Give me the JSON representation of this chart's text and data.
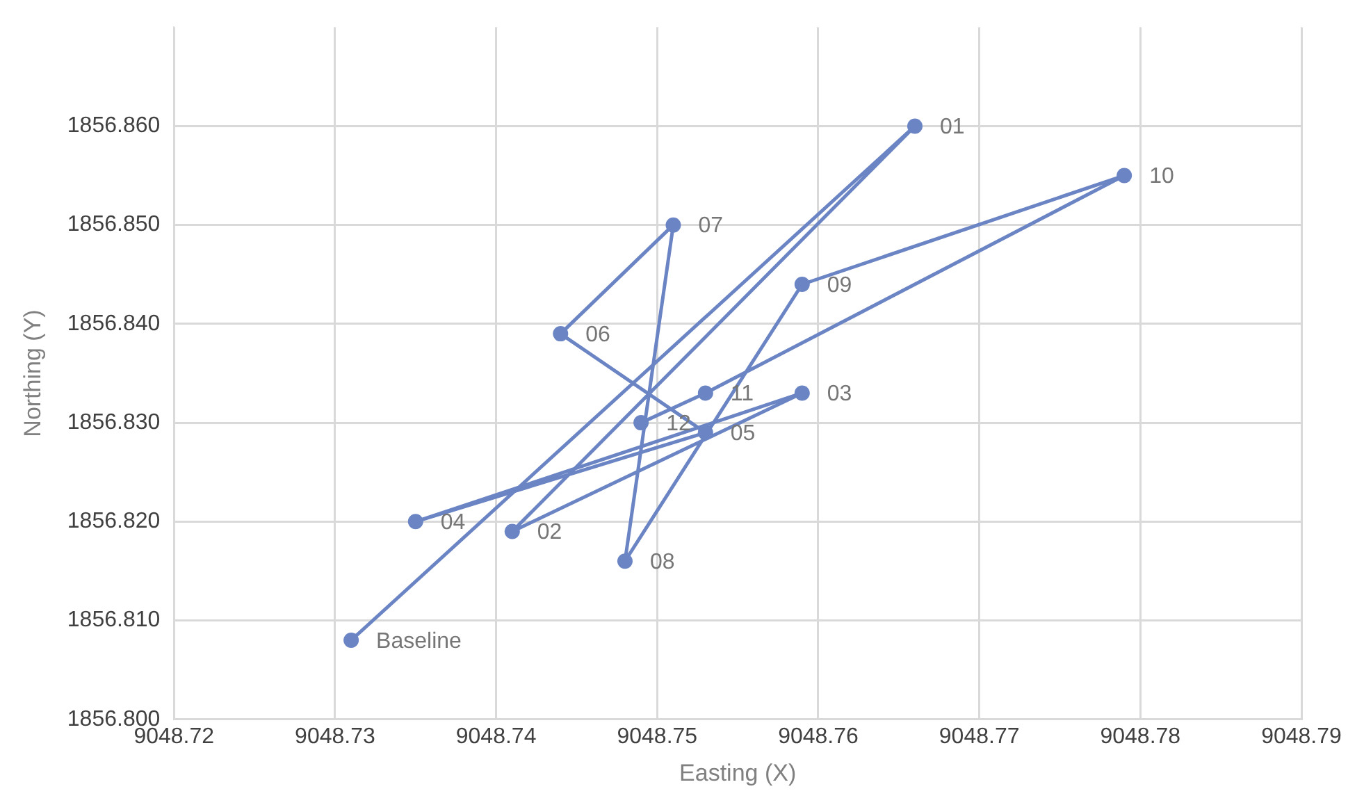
{
  "chart_data": {
    "type": "line",
    "xlabel": "Easting (X)",
    "ylabel": "Northing (Y)",
    "xlim": [
      9048.72,
      9048.79
    ],
    "xticks": [
      9048.72,
      9048.73,
      9048.74,
      9048.75,
      9048.76,
      9048.77,
      9048.78,
      9048.79
    ],
    "ylim": [
      1856.8,
      1856.87
    ],
    "yticks": [
      {
        "value": 1856.8,
        "label": "1856.800"
      },
      {
        "value": 1856.81,
        "label": "1856.810"
      },
      {
        "value": 1856.82,
        "label": "1856.820"
      },
      {
        "value": 1856.83,
        "label": "1856.830"
      },
      {
        "value": 1856.84,
        "label": "1856.840"
      },
      {
        "value": 1856.85,
        "label": "1856.850"
      },
      {
        "value": 1856.86,
        "label": "1856.860"
      }
    ],
    "grid": true,
    "legend": false,
    "marker": "circle",
    "line_style": "solid",
    "series": [
      {
        "color": "#6a84c4",
        "x": [
          9048.731,
          9048.766,
          9048.741,
          9048.759,
          9048.735,
          9048.753,
          9048.744,
          9048.751,
          9048.748,
          9048.759,
          9048.779,
          9048.753,
          9048.749
        ],
        "values": [
          1856.808,
          1856.86,
          1856.819,
          1856.833,
          1856.82,
          1856.829,
          1856.839,
          1856.85,
          1856.816,
          1856.844,
          1856.855,
          1856.833,
          1856.83
        ]
      }
    ],
    "annotations": [
      {
        "text": "Baseline",
        "x": 9048.731,
        "y": 1856.808
      },
      {
        "text": "01",
        "x": 9048.766,
        "y": 1856.86
      },
      {
        "text": "02",
        "x": 9048.741,
        "y": 1856.819
      },
      {
        "text": "03",
        "x": 9048.759,
        "y": 1856.833
      },
      {
        "text": "04",
        "x": 9048.735,
        "y": 1856.82
      },
      {
        "text": "05",
        "x": 9048.753,
        "y": 1856.829
      },
      {
        "text": "06",
        "x": 9048.744,
        "y": 1856.839
      },
      {
        "text": "07",
        "x": 9048.751,
        "y": 1856.85
      },
      {
        "text": "08",
        "x": 9048.748,
        "y": 1856.816
      },
      {
        "text": "09",
        "x": 9048.759,
        "y": 1856.844
      },
      {
        "text": "10",
        "x": 9048.779,
        "y": 1856.855
      },
      {
        "text": "11",
        "x": 9048.753,
        "y": 1856.833
      },
      {
        "text": "12",
        "x": 9048.749,
        "y": 1856.83
      }
    ]
  }
}
